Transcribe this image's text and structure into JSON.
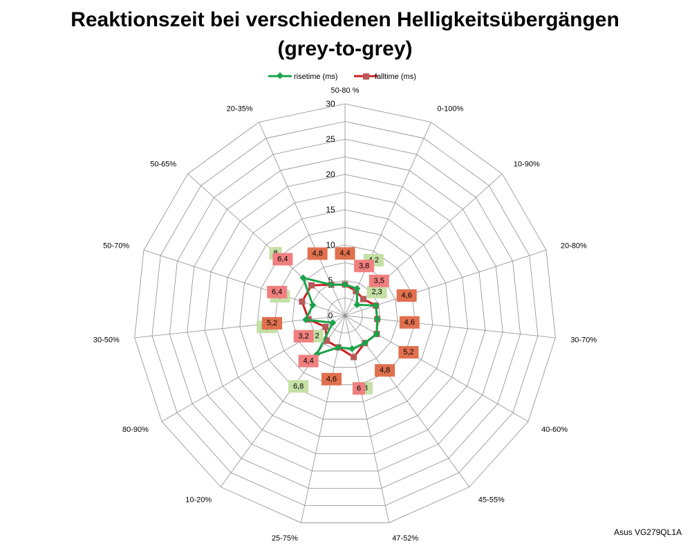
{
  "chart_data": {
    "type": "radar",
    "title": [
      "Reaktionszeit bei verschiedenen Helligkeitsübergängen",
      "(grey-to-grey)"
    ],
    "categories": [
      "50-80 %",
      "0-100%",
      "10-90%",
      "20-80%",
      "30-70%",
      "40-60%",
      "45-55%",
      "47-52%",
      "25-75%",
      "10-20%",
      "80-90%",
      "30-50%",
      "50-70%",
      "50-65%",
      "20-35%"
    ],
    "radial_range": [
      0,
      30
    ],
    "ticks": [
      "0",
      "5",
      "10",
      "15",
      "20",
      "25",
      "30"
    ],
    "tick_values": [
      0,
      5,
      10,
      15,
      20,
      25,
      30
    ],
    "gridlines": true,
    "legend_position": "top",
    "series": [
      {
        "name": "risetime (ms)",
        "color": "#1aa34a",
        "marker": "diamond",
        "label_color": "#c4e0a4",
        "values": [
          4.4,
          4.2,
          2.3,
          4.6,
          4.6,
          5.2,
          4.8,
          4.8,
          4.6,
          6.8,
          2,
          5.6,
          4.8,
          8,
          4.8
        ],
        "labels": [
          "",
          "4,2",
          "2,3",
          "",
          "",
          "",
          "",
          "4,8",
          "",
          "6,8",
          "2",
          "5,6",
          "4,8",
          "8",
          ""
        ]
      },
      {
        "name": "falltime (ms)",
        "color": "#cc1f1f",
        "marker": "square",
        "label_color": "#f08080",
        "values": [
          4.4,
          3.8,
          3.5,
          4.6,
          4.6,
          5.2,
          4.8,
          6,
          4.6,
          4.4,
          3.2,
          5.2,
          6.4,
          6.4,
          4.8
        ],
        "labels": [
          "",
          "3,8",
          "3,5",
          "",
          "",
          "",
          "",
          "6",
          "",
          "4,4",
          "3,2",
          "",
          "6,4",
          "6,4",
          ""
        ]
      },
      {
        "name": "",
        "role": "shared-labels",
        "label_color": "#e0704e",
        "values": [
          4.4,
          null,
          null,
          4.6,
          4.6,
          5.2,
          4.8,
          null,
          4.6,
          null,
          null,
          5.2,
          null,
          null,
          4.8
        ],
        "labels": [
          "4,4",
          "",
          "",
          "4,6",
          "4,6",
          "5,2",
          "4,8",
          "",
          "4,6",
          "",
          "",
          "5,2",
          "",
          "",
          "4,8"
        ]
      }
    ],
    "source": "Asus VG279QL1A"
  }
}
